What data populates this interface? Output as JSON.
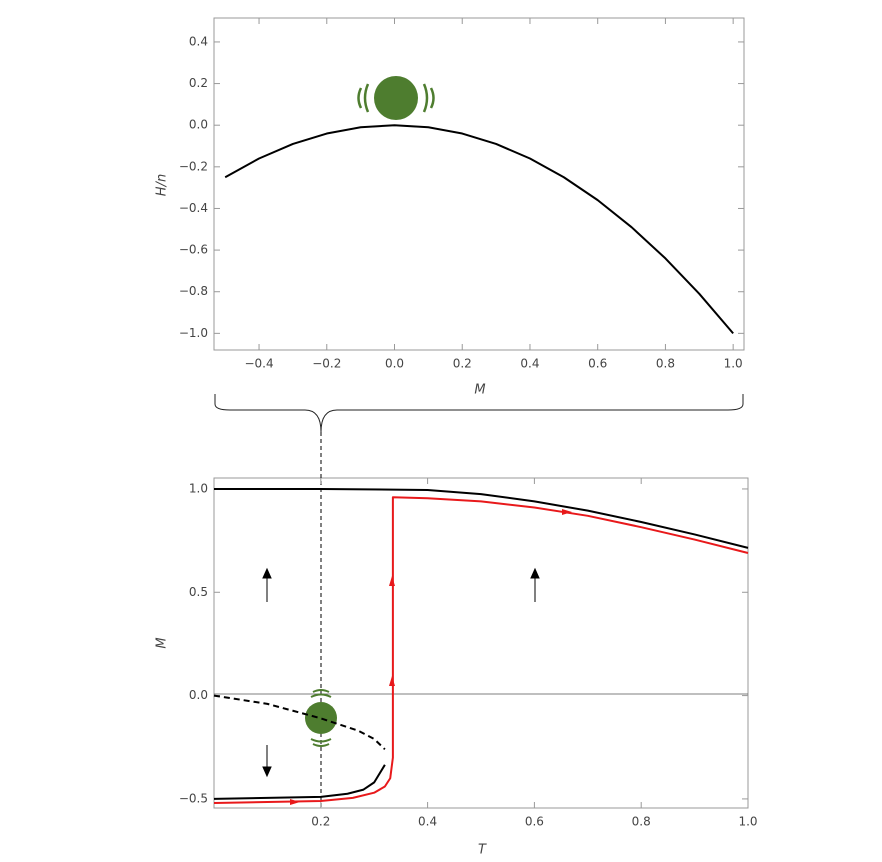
{
  "chart_data": [
    {
      "type": "line",
      "x_label": "M",
      "y_label": "H/n",
      "xlim": [
        -0.533,
        1.032
      ],
      "ylim": [
        -1.08,
        0.515
      ],
      "xticks": [
        {
          "value": -0.4,
          "label": "−0.4"
        },
        {
          "value": -0.2,
          "label": "−0.2"
        },
        {
          "value": 0,
          "label": "0.0"
        },
        {
          "value": 0.2,
          "label": "0.2"
        },
        {
          "value": 0.4,
          "label": "0.4"
        },
        {
          "value": 0.6,
          "label": "0.6"
        },
        {
          "value": 0.8,
          "label": "0.8"
        },
        {
          "value": 1,
          "label": "1.0"
        }
      ],
      "yticks": [
        {
          "value": 0.4,
          "label": "0.4"
        },
        {
          "value": 0.2,
          "label": "0.2"
        },
        {
          "value": 0,
          "label": "0.0"
        },
        {
          "value": -0.2,
          "label": "−0.2"
        },
        {
          "value": -0.4,
          "label": "−0.4"
        },
        {
          "value": -0.6,
          "label": "−0.6"
        },
        {
          "value": -0.8,
          "label": "−0.8"
        },
        {
          "value": -1,
          "label": "−1.0"
        }
      ],
      "series": [
        {
          "color": "#000000",
          "dash": false,
          "x": [
            -0.5,
            -0.4,
            -0.3,
            -0.2,
            -0.1,
            0,
            0.1,
            0.2,
            0.3,
            0.4,
            0.5,
            0.6,
            0.7,
            0.8,
            0.9,
            1.0
          ],
          "values": [
            -0.25,
            -0.16,
            -0.09,
            -0.04,
            -0.01,
            0,
            -0.01,
            -0.04,
            -0.09,
            -0.16,
            -0.25,
            -0.36,
            -0.49,
            -0.64,
            -0.81,
            -1.0
          ]
        }
      ]
    },
    {
      "type": "line",
      "x_label": "T",
      "y_label": "M",
      "xlim": [
        0,
        1.0
      ],
      "ylim": [
        -0.544,
        1.053
      ],
      "xticks": [
        {
          "value": 0.2,
          "label": "0.2"
        },
        {
          "value": 0.4,
          "label": "0.4"
        },
        {
          "value": 0.6,
          "label": "0.6"
        },
        {
          "value": 0.8,
          "label": "0.8"
        },
        {
          "value": 1,
          "label": "1.0"
        }
      ],
      "yticks": [
        {
          "value": 1,
          "label": "1.0"
        },
        {
          "value": 0.5,
          "label": "0.5"
        },
        {
          "value": 0,
          "label": "0.0"
        },
        {
          "value": -0.5,
          "label": "−0.5"
        }
      ],
      "series": [
        {
          "color": "#000000",
          "dash": false,
          "x": [
            0,
            0.2,
            0.4,
            0.5,
            0.6,
            0.7,
            0.8,
            0.9,
            1.0
          ],
          "values": [
            1.0,
            1.0,
            0.995,
            0.975,
            0.94,
            0.895,
            0.84,
            0.78,
            0.715
          ]
        },
        {
          "color": "#000000",
          "dash": true,
          "x": [
            0,
            0.1,
            0.2,
            0.27,
            0.3,
            0.32
          ],
          "values": [
            0,
            -0.04,
            -0.11,
            -0.17,
            -0.21,
            -0.26
          ]
        },
        {
          "color": "#000000",
          "dash": false,
          "x": [
            0,
            0.2,
            0.25,
            0.28,
            0.3,
            0.32
          ],
          "values": [
            -0.5,
            -0.49,
            -0.475,
            -0.455,
            -0.42,
            -0.335
          ]
        },
        {
          "color": "#e8191b",
          "dash": false,
          "x": [
            0,
            0.2,
            0.26,
            0.3,
            0.32,
            0.33,
            0.335,
            0.335,
            0.4,
            0.5,
            0.6,
            0.7,
            0.8,
            0.9,
            1.0
          ],
          "values": [
            -0.52,
            -0.51,
            -0.495,
            -0.47,
            -0.44,
            -0.4,
            -0.3,
            0.96,
            0.955,
            0.94,
            0.91,
            0.87,
            0.815,
            0.755,
            0.69
          ]
        }
      ]
    }
  ]
}
